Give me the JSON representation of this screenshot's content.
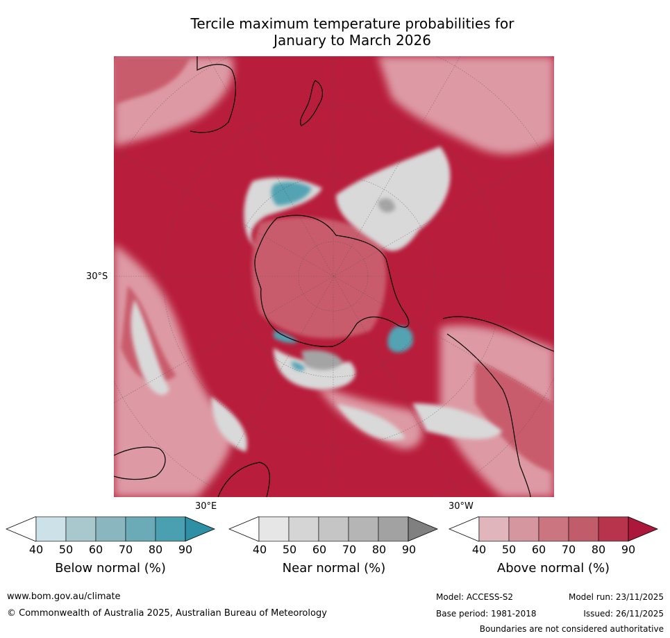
{
  "title": {
    "line1": "Tercile maximum temperature probabilities for",
    "line2": "January to March 2026"
  },
  "map": {
    "labels": {
      "lat_30s": "30°S",
      "lon_30e": "30°E",
      "lon_30w": "30°W"
    },
    "colors": {
      "ocean_base": "#b81d3b",
      "above_light": "#dd9aa4",
      "above_mid": "#c95b6c",
      "near": "#d9d9d9",
      "near_dark": "#a4a4a4",
      "below": "#53a3b3",
      "coast": "#000000"
    }
  },
  "legends": [
    {
      "title": "Below normal (%)",
      "ticks": [
        "40",
        "50",
        "60",
        "70",
        "80",
        "90"
      ],
      "colors": [
        "#cde2e8",
        "#a9c8ce",
        "#8ab7bf",
        "#6aabb7",
        "#4aa0b1",
        "#2f8fa4"
      ]
    },
    {
      "title": "Near normal (%)",
      "ticks": [
        "40",
        "50",
        "60",
        "70",
        "80",
        "90"
      ],
      "colors": [
        "#e6e6e6",
        "#d5d5d5",
        "#c5c5c5",
        "#b5b5b5",
        "#a2a2a2",
        "#808080"
      ]
    },
    {
      "title": "Above normal (%)",
      "ticks": [
        "40",
        "50",
        "60",
        "70",
        "80",
        "90"
      ],
      "colors": [
        "#e0b6bc",
        "#d5969f",
        "#cb7581",
        "#c15c6b",
        "#b7344c",
        "#ac1839"
      ]
    }
  ],
  "footer": {
    "website": "www.bom.gov.au/climate",
    "copyright": "© Commonwealth of Australia 2025, Australian Bureau of Meteorology",
    "model": "Model: ACCESS-S2",
    "base_period": "Base period: 1981-2018",
    "model_run": "Model run: 23/11/2025",
    "issued": "Issued: 26/11/2025",
    "disclaimer": "Boundaries are not considered authoritative"
  }
}
